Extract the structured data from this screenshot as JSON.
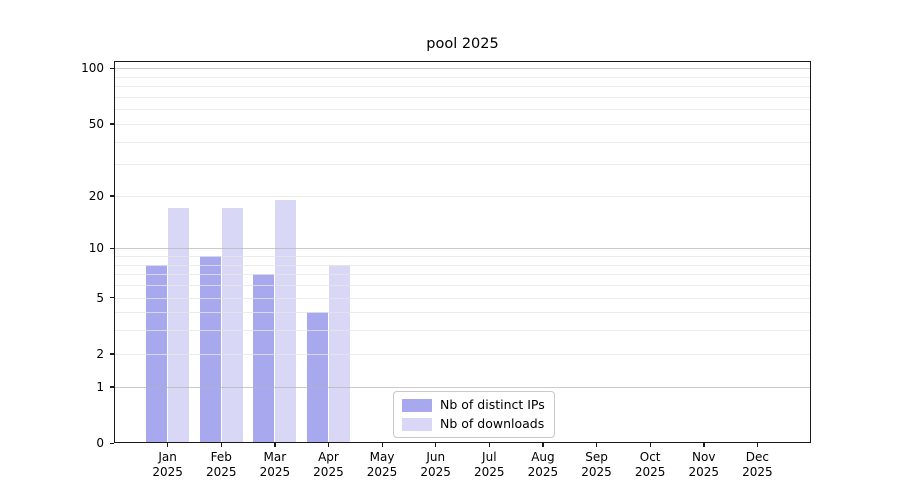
{
  "chart_data": {
    "type": "bar",
    "title": "pool 2025",
    "categories": [
      {
        "month": "Jan",
        "year": "2025"
      },
      {
        "month": "Feb",
        "year": "2025"
      },
      {
        "month": "Mar",
        "year": "2025"
      },
      {
        "month": "Apr",
        "year": "2025"
      },
      {
        "month": "May",
        "year": "2025"
      },
      {
        "month": "Jun",
        "year": "2025"
      },
      {
        "month": "Jul",
        "year": "2025"
      },
      {
        "month": "Aug",
        "year": "2025"
      },
      {
        "month": "Sep",
        "year": "2025"
      },
      {
        "month": "Oct",
        "year": "2025"
      },
      {
        "month": "Nov",
        "year": "2025"
      },
      {
        "month": "Dec",
        "year": "2025"
      }
    ],
    "series": [
      {
        "name": "Nb of distinct IPs",
        "color": "#a8a8ef",
        "values": [
          8,
          9,
          7,
          4,
          0,
          0,
          0,
          0,
          0,
          0,
          0,
          0
        ]
      },
      {
        "name": "Nb of downloads",
        "color": "#d8d8f6",
        "values": [
          17,
          17,
          19,
          8,
          0,
          0,
          0,
          0,
          0,
          0,
          0,
          0
        ]
      }
    ],
    "y_axis": {
      "scale": "log10(1+x)",
      "tick_labels": [
        0,
        1,
        2,
        5,
        10,
        20,
        50,
        100
      ],
      "major_gridlines": [
        1,
        10,
        100
      ],
      "minor_gridlines": [
        2,
        3,
        4,
        5,
        6,
        7,
        8,
        9,
        20,
        30,
        40,
        50,
        60,
        70,
        80,
        90
      ],
      "ylim": [
        0,
        110
      ]
    },
    "xlabel": "",
    "ylabel": "",
    "grid": true,
    "legend_position": "inside-bottom-center"
  }
}
